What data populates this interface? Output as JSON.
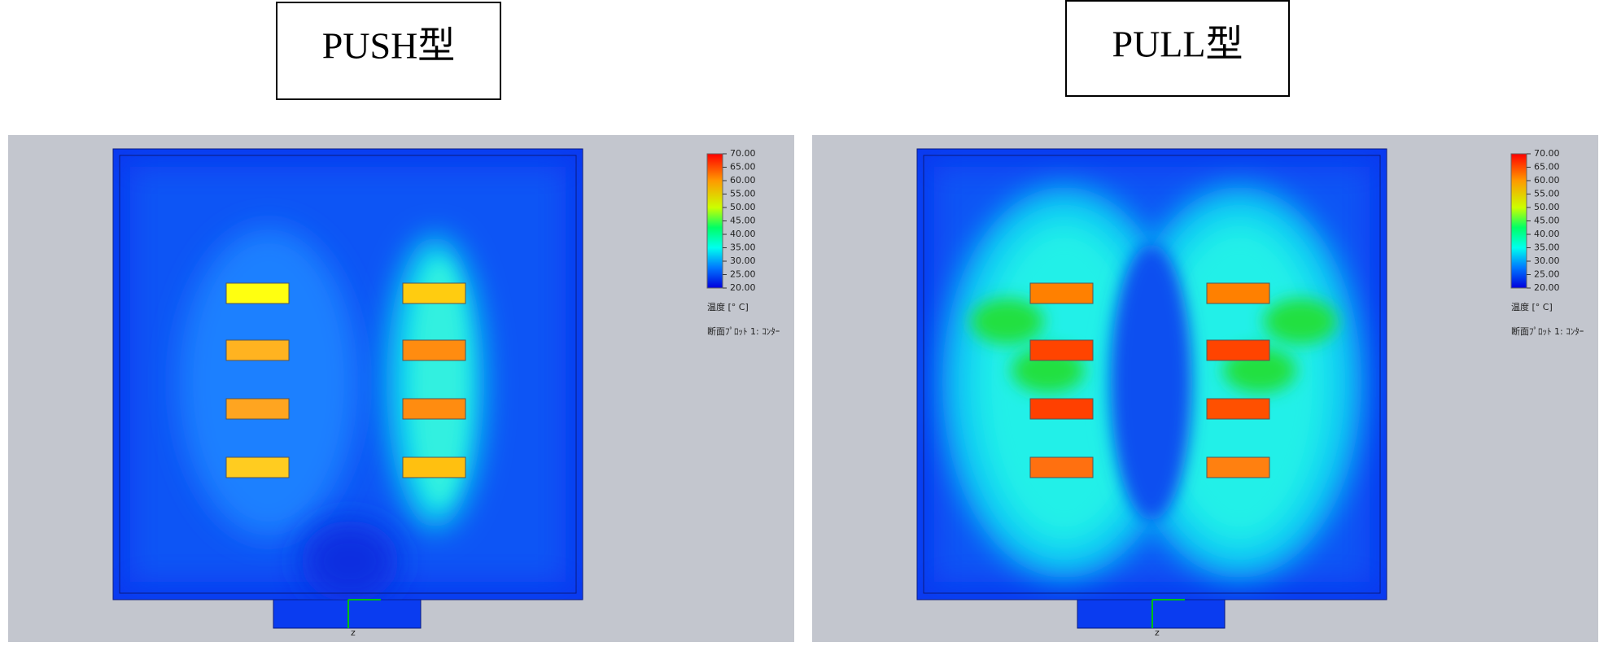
{
  "panels": [
    {
      "title": "PUSH型",
      "legend": {
        "ticks": [
          {
            "value": 70,
            "label": "70.00"
          },
          {
            "value": 65,
            "label": "65.00"
          },
          {
            "value": 60,
            "label": "60.00"
          },
          {
            "value": 55,
            "label": "55.00"
          },
          {
            "value": 50,
            "label": "50.00"
          },
          {
            "value": 45,
            "label": "45.00"
          },
          {
            "value": 40,
            "label": "40.00"
          },
          {
            "value": 35,
            "label": "35.00"
          },
          {
            "value": 30,
            "label": "30.00"
          },
          {
            "value": 25,
            "label": "25.00"
          },
          {
            "value": 20,
            "label": "20.00"
          }
        ],
        "title": "温度 [° C]",
        "plot_label": "断面ﾌﾟﾛｯﾄ 1: ｺﾝﾀｰ"
      },
      "axis_label": "z"
    },
    {
      "title": "PULL型",
      "legend": {
        "ticks": [
          {
            "value": 70,
            "label": "70.00"
          },
          {
            "value": 65,
            "label": "65.00"
          },
          {
            "value": 60,
            "label": "60.00"
          },
          {
            "value": 55,
            "label": "55.00"
          },
          {
            "value": 50,
            "label": "50.00"
          },
          {
            "value": 45,
            "label": "45.00"
          },
          {
            "value": 40,
            "label": "40.00"
          },
          {
            "value": 35,
            "label": "35.00"
          },
          {
            "value": 30,
            "label": "30.00"
          },
          {
            "value": 25,
            "label": "25.00"
          },
          {
            "value": 20,
            "label": "20.00"
          }
        ],
        "title": "温度 [° C]",
        "plot_label": "断面ﾌﾟﾛｯﾄ 1: ｺﾝﾀｰ"
      },
      "axis_label": "z"
    }
  ]
}
